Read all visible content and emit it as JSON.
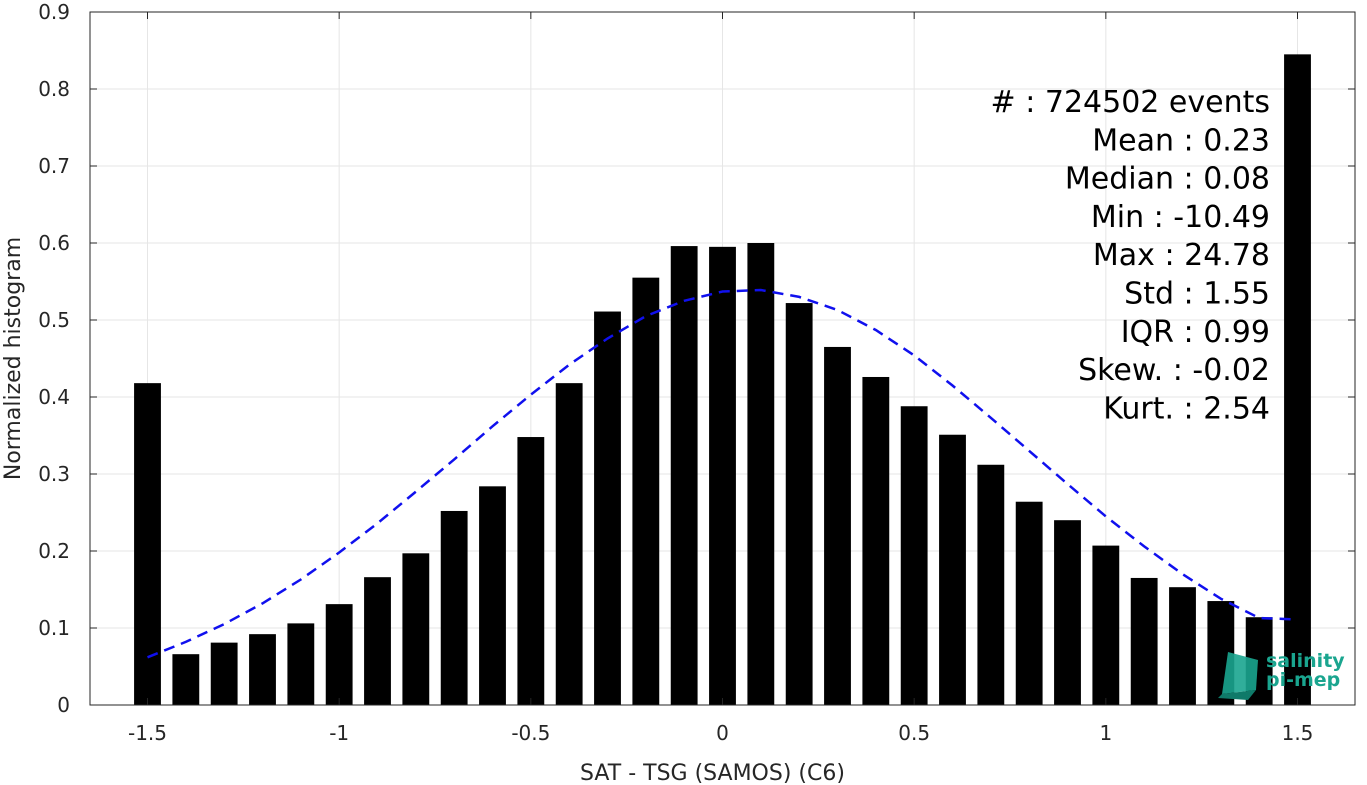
{
  "chart_data": {
    "type": "bar",
    "xlabel": "SAT - TSG (SAMOS) (C6)",
    "ylabel": "Normalized histogram",
    "xlim": [
      -1.65,
      1.65
    ],
    "ylim": [
      0,
      0.9
    ],
    "grid": true,
    "x_ticks": [
      -1.5,
      -1,
      -0.5,
      0,
      0.5,
      1,
      1.5
    ],
    "x_tick_labels": [
      "-1.5",
      "-1",
      "-0.5",
      "0",
      "0.5",
      "1",
      "1.5"
    ],
    "y_ticks": [
      0,
      0.1,
      0.2,
      0.3,
      0.4,
      0.5,
      0.6,
      0.7,
      0.8,
      0.9
    ],
    "y_tick_labels": [
      "0",
      "0.1",
      "0.2",
      "0.3",
      "0.4",
      "0.5",
      "0.6",
      "0.7",
      "0.8",
      "0.9"
    ],
    "bar_width": 0.07,
    "bar_color": "#000000",
    "series": [
      {
        "x": [
          -1.5,
          -1.4,
          -1.3,
          -1.2,
          -1.1,
          -1.0,
          -0.9,
          -0.8,
          -0.7,
          -0.6,
          -0.5,
          -0.4,
          -0.3,
          -0.2,
          -0.1,
          0.0,
          0.1,
          0.2,
          0.3,
          0.4,
          0.5,
          0.6,
          0.7,
          0.8,
          0.9,
          1.0,
          1.1,
          1.2,
          1.3,
          1.4,
          1.5
        ],
        "values": [
          0.418,
          0.066,
          0.081,
          0.092,
          0.106,
          0.131,
          0.166,
          0.197,
          0.252,
          0.284,
          0.348,
          0.418,
          0.511,
          0.555,
          0.596,
          0.595,
          0.6,
          0.522,
          0.465,
          0.426,
          0.388,
          0.351,
          0.312,
          0.264,
          0.24,
          0.207,
          0.165,
          0.153,
          0.135,
          0.114,
          0.845
        ]
      }
    ],
    "fit_curve": {
      "style": "dashed",
      "color": "#1010ee",
      "x": [
        -1.5,
        -1.4,
        -1.3,
        -1.2,
        -1.1,
        -1.0,
        -0.9,
        -0.8,
        -0.7,
        -0.6,
        -0.5,
        -0.4,
        -0.3,
        -0.2,
        -0.1,
        0.0,
        0.1,
        0.2,
        0.3,
        0.4,
        0.5,
        0.6,
        0.7,
        0.8,
        0.9,
        1.0,
        1.1,
        1.2,
        1.3,
        1.4,
        1.5
      ],
      "y": [
        0.062,
        0.082,
        0.105,
        0.132,
        0.163,
        0.198,
        0.236,
        0.277,
        0.319,
        0.362,
        0.403,
        0.442,
        0.476,
        0.505,
        0.525,
        0.537,
        0.539,
        0.53,
        0.513,
        0.487,
        0.454,
        0.415,
        0.373,
        0.33,
        0.287,
        0.245,
        0.206,
        0.17,
        0.138,
        0.113,
        0.111
      ]
    },
    "annotations": [
      "#  : 724502 events",
      "Mean : 0.23",
      "Median : 0.08",
      "Min : -10.49",
      "Max : 24.78",
      "Std : 1.55",
      "IQR : 0.99",
      "Skew. : -0.02",
      "Kurt. : 2.54"
    ]
  },
  "logo": {
    "line1": "salinity",
    "line2": "pi-mep",
    "color": "#1aa58f"
  }
}
